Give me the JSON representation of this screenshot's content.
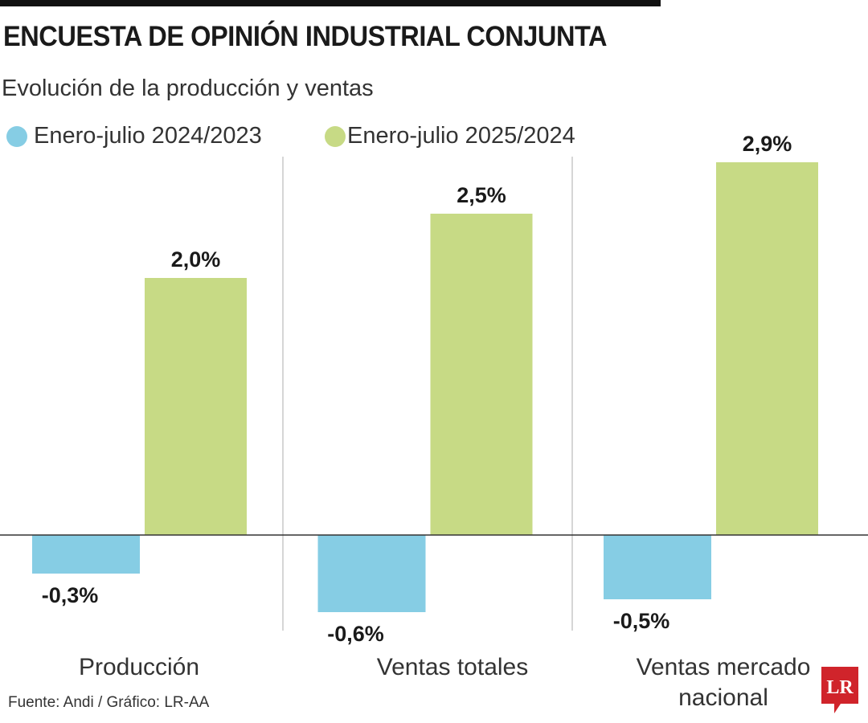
{
  "chart_data": {
    "type": "bar",
    "title": "ENCUESTA DE OPINIÓN INDUSTRIAL CONJUNTA",
    "subtitle": "Evolución de la producción y ventas",
    "categories": [
      "Producción",
      "Ventas totales",
      "Ventas mercado nacional"
    ],
    "series": [
      {
        "name": "Enero-julio 2024/2023",
        "values": [
          -0.3,
          -0.6,
          -0.5
        ],
        "labels": [
          "-0,3%",
          "-0,6%",
          "-0,5%"
        ],
        "color": "#86cde4"
      },
      {
        "name": "Enero-julio 2025/2024",
        "values": [
          2.0,
          2.5,
          2.9
        ],
        "labels": [
          "2,0%",
          "2,5%",
          "2,9%"
        ],
        "color": "#c7da85"
      }
    ],
    "legend": "top-left",
    "grid": false,
    "source": "Fuente: Andi / Gráfico: LR-AA",
    "logo_text": "LR",
    "logo_color": "#d0242b"
  }
}
